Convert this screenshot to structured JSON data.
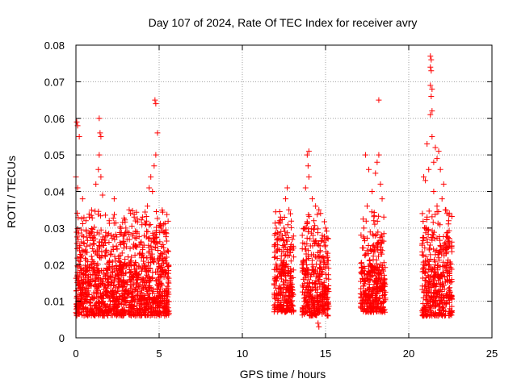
{
  "chart_data": {
    "type": "scatter",
    "title": "Day 107 of 2024, Rate Of TEC Index for receiver avry",
    "xlabel": "GPS time / hours",
    "ylabel": "ROTI / TECUs",
    "xlim": [
      0,
      25
    ],
    "ylim": [
      0,
      0.08
    ],
    "xticks": [
      "0",
      "5",
      "10",
      "15",
      "20",
      "25"
    ],
    "yticks": [
      "0",
      "0.01",
      "0.02",
      "0.03",
      "0.04",
      "0.05",
      "0.06",
      "0.07",
      "0.08"
    ],
    "grid": true,
    "marker": "+",
    "color": "#ff0000",
    "series": [
      {
        "clusters": [
          {
            "x_range": [
              0.0,
              2.8
            ],
            "typical": [
              0.006,
              0.02
            ],
            "peaks": [
              [
                0.05,
                0.059
              ],
              [
                0.1,
                0.058
              ],
              [
                0.2,
                0.055
              ],
              [
                0.0,
                0.044
              ],
              [
                0.1,
                0.041
              ],
              [
                0.4,
                0.038
              ],
              [
                1.4,
                0.06
              ],
              [
                1.45,
                0.056
              ],
              [
                1.5,
                0.055
              ],
              [
                1.4,
                0.05
              ],
              [
                1.35,
                0.046
              ],
              [
                1.5,
                0.044
              ],
              [
                1.2,
                0.042
              ],
              [
                1.6,
                0.039
              ],
              [
                0.8,
                0.033
              ],
              [
                2.3,
                0.038
              ],
              [
                2.0,
                0.032
              ],
              [
                0.6,
                0.032
              ]
            ]
          },
          {
            "x_range": [
              2.8,
              5.6
            ],
            "typical": [
              0.006,
              0.02
            ],
            "peaks": [
              [
                4.75,
                0.065
              ],
              [
                4.8,
                0.064
              ],
              [
                4.9,
                0.056
              ],
              [
                4.8,
                0.05
              ],
              [
                4.7,
                0.047
              ],
              [
                4.5,
                0.044
              ],
              [
                4.4,
                0.041
              ],
              [
                4.6,
                0.04
              ],
              [
                4.3,
                0.036
              ],
              [
                3.2,
                0.035
              ],
              [
                3.5,
                0.033
              ],
              [
                4.0,
                0.033
              ],
              [
                4.2,
                0.031
              ],
              [
                3.0,
                0.03
              ]
            ]
          },
          {
            "x_range": [
              11.9,
              13.1
            ],
            "typical": [
              0.007,
              0.02
            ],
            "peaks": [
              [
                12.7,
                0.041
              ],
              [
                12.6,
                0.038
              ],
              [
                12.8,
                0.035
              ],
              [
                12.3,
                0.033
              ],
              [
                12.5,
                0.03
              ],
              [
                12.1,
                0.027
              ],
              [
                12.9,
                0.025
              ]
            ]
          },
          {
            "x_range": [
              13.6,
              15.2
            ],
            "typical": [
              0.006,
              0.019
            ],
            "peaks": [
              [
                13.9,
                0.05
              ],
              [
                14.0,
                0.051
              ],
              [
                13.95,
                0.047
              ],
              [
                14.0,
                0.044
              ],
              [
                13.8,
                0.041
              ],
              [
                14.2,
                0.038
              ],
              [
                14.4,
                0.036
              ],
              [
                14.6,
                0.035
              ],
              [
                14.7,
                0.034
              ],
              [
                14.3,
                0.032
              ],
              [
                15.0,
                0.03
              ],
              [
                14.8,
                0.028
              ],
              [
                14.6,
                0.003
              ],
              [
                14.55,
                0.004
              ]
            ]
          },
          {
            "x_range": [
              17.1,
              18.6
            ],
            "typical": [
              0.007,
              0.02
            ],
            "peaks": [
              [
                18.2,
                0.065
              ],
              [
                17.4,
                0.05
              ],
              [
                18.2,
                0.05
              ],
              [
                18.1,
                0.048
              ],
              [
                17.6,
                0.046
              ],
              [
                18.0,
                0.045
              ],
              [
                18.3,
                0.042
              ],
              [
                17.8,
                0.04
              ],
              [
                18.4,
                0.038
              ],
              [
                17.5,
                0.036
              ],
              [
                18.5,
                0.033
              ],
              [
                17.9,
                0.032
              ],
              [
                17.3,
                0.03
              ]
            ]
          },
          {
            "x_range": [
              20.8,
              22.6
            ],
            "typical": [
              0.006,
              0.02
            ],
            "peaks": [
              [
                21.3,
                0.077
              ],
              [
                21.35,
                0.076
              ],
              [
                21.3,
                0.074
              ],
              [
                21.35,
                0.073
              ],
              [
                21.3,
                0.069
              ],
              [
                21.4,
                0.068
              ],
              [
                21.35,
                0.066
              ],
              [
                21.4,
                0.062
              ],
              [
                21.3,
                0.061
              ],
              [
                21.4,
                0.055
              ],
              [
                21.1,
                0.053
              ],
              [
                21.6,
                0.052
              ],
              [
                21.8,
                0.051
              ],
              [
                21.7,
                0.049
              ],
              [
                21.5,
                0.048
              ],
              [
                21.2,
                0.046
              ],
              [
                21.9,
                0.046
              ],
              [
                20.9,
                0.044
              ],
              [
                21.0,
                0.043
              ],
              [
                22.1,
                0.042
              ],
              [
                21.5,
                0.04
              ],
              [
                22.0,
                0.038
              ],
              [
                21.7,
                0.036
              ],
              [
                22.2,
                0.035
              ],
              [
                22.3,
                0.034
              ],
              [
                21.1,
                0.033
              ],
              [
                22.4,
                0.032
              ],
              [
                20.95,
                0.03
              ]
            ]
          }
        ]
      }
    ]
  }
}
